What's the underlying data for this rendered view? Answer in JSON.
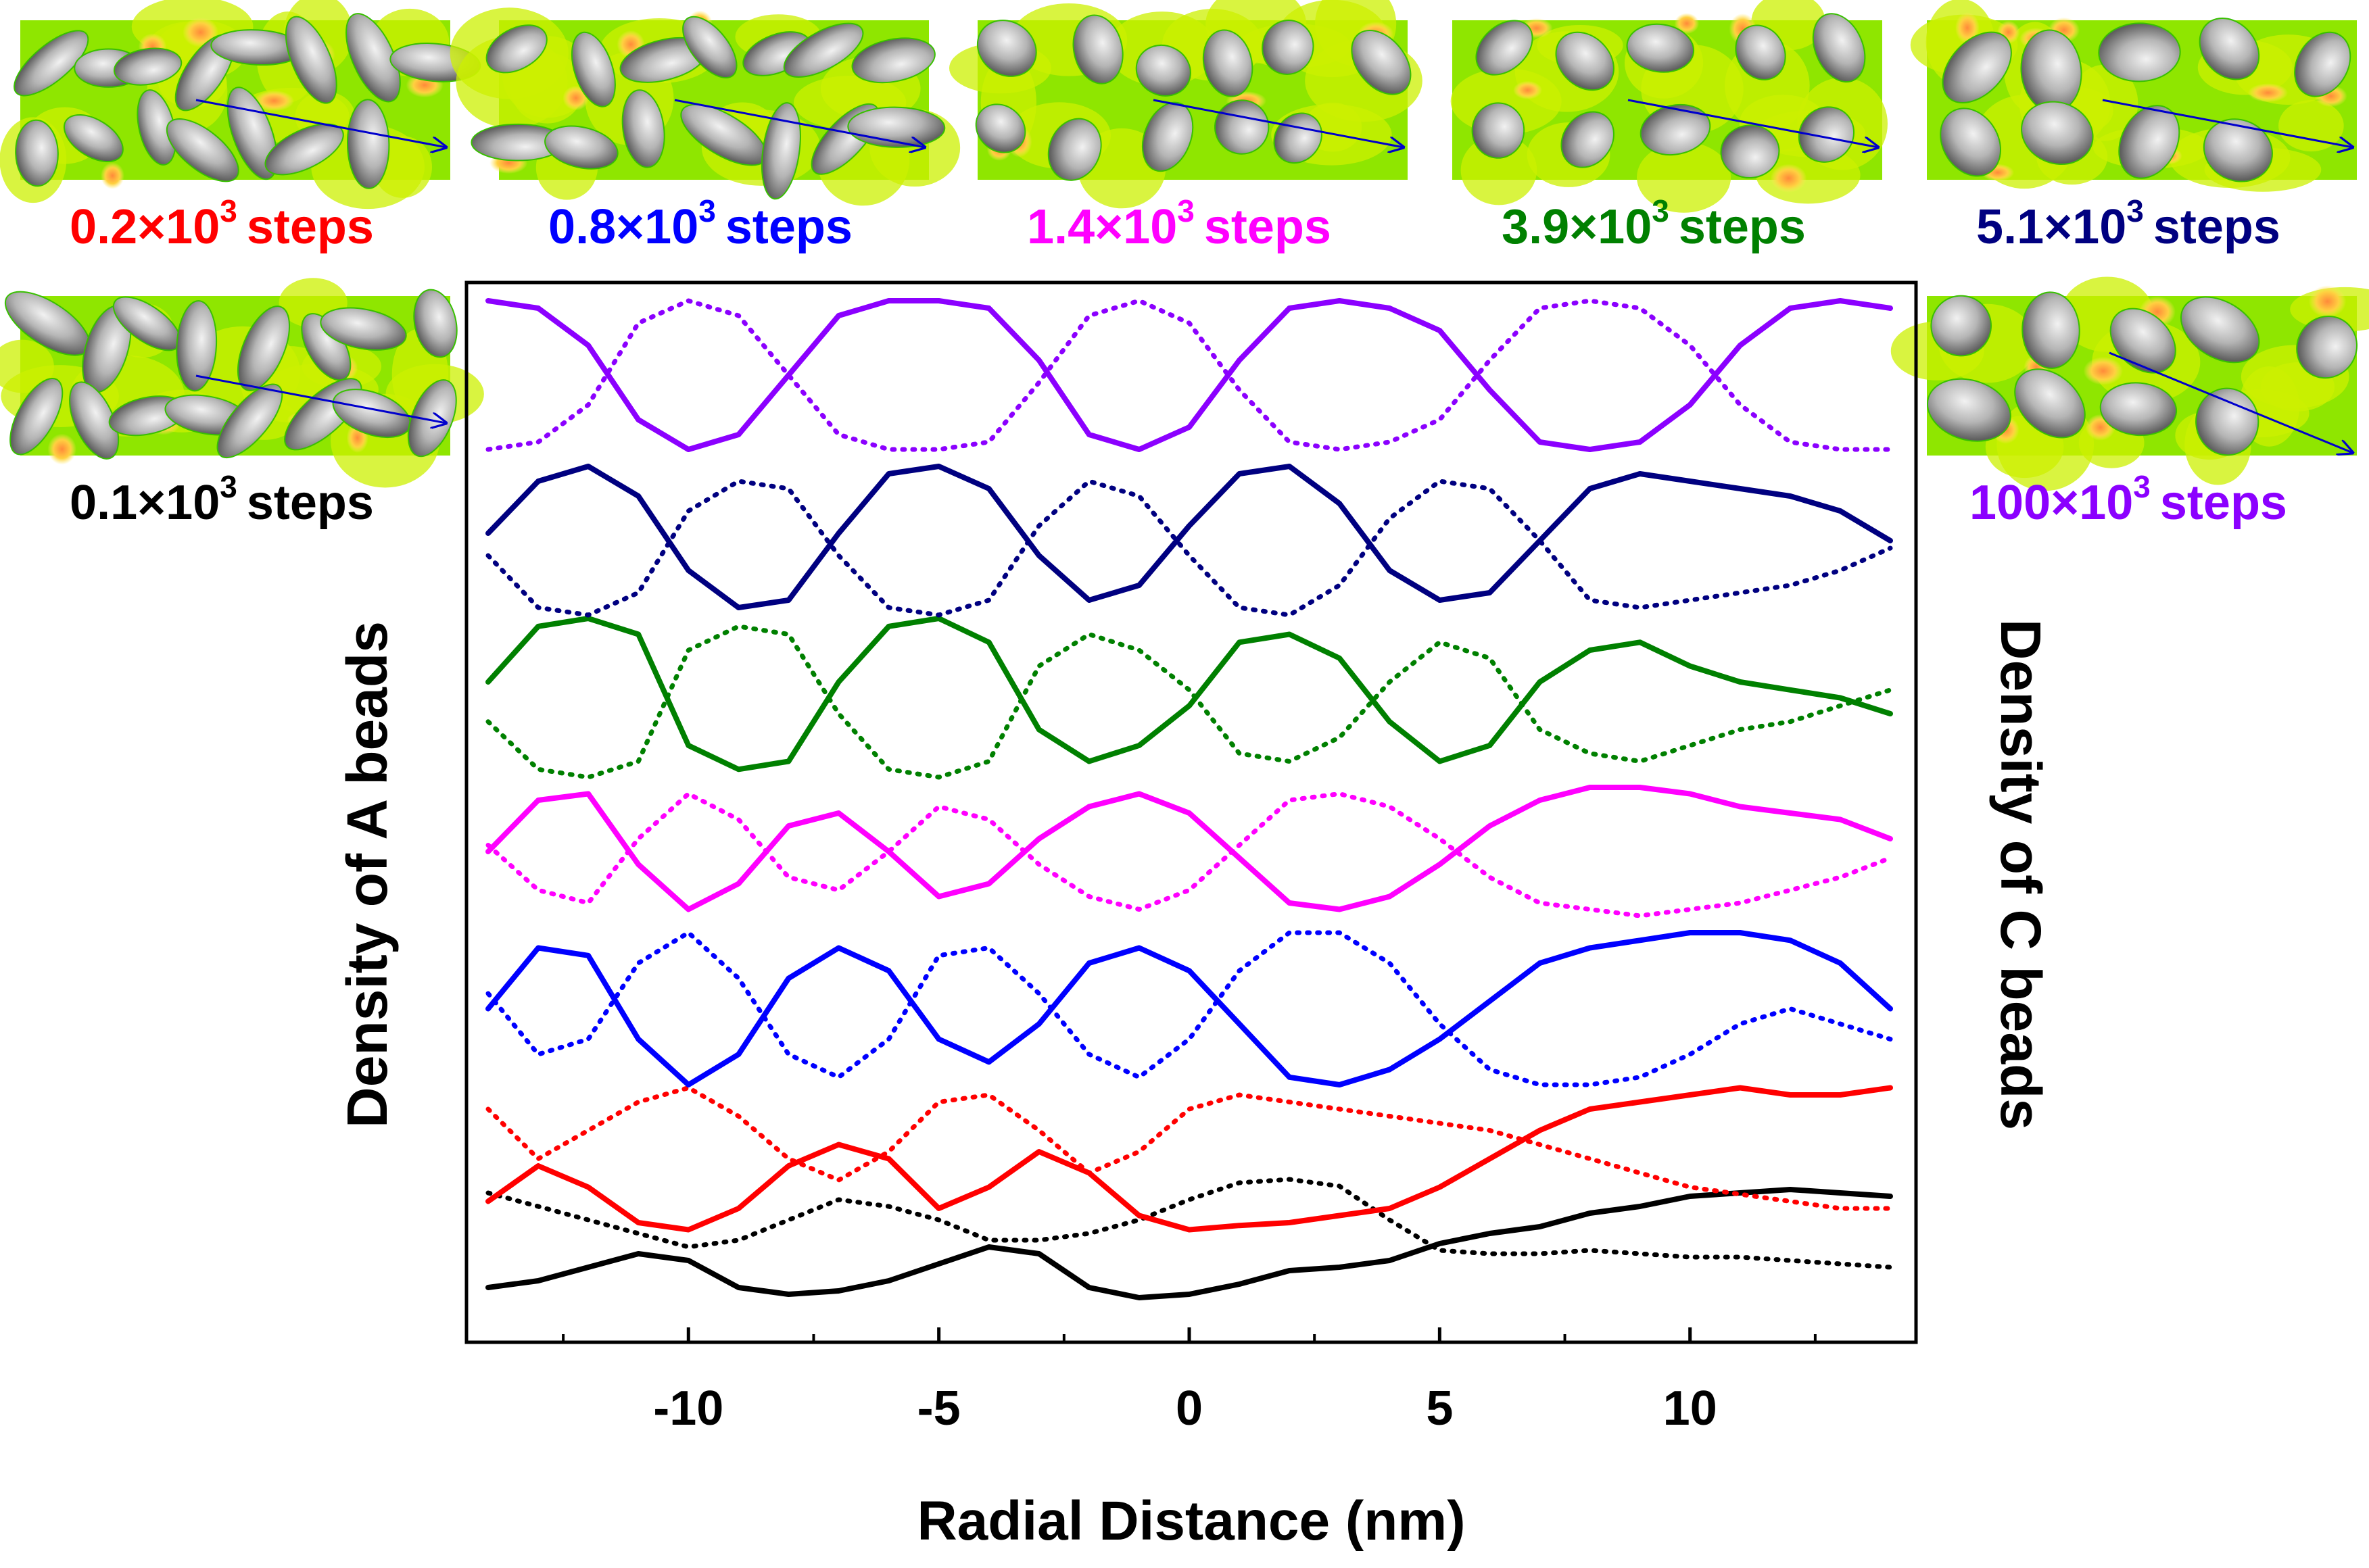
{
  "chart_data": {
    "type": "line",
    "xlabel": "Radial Distance (nm)",
    "ylabel_left": "Density of A beads",
    "ylabel_right": "Density of C beads",
    "xlim": [
      -14,
      14
    ],
    "xticks": [
      -10,
      -5,
      0,
      5,
      10
    ],
    "xtick_labels": [
      "-10",
      "-5",
      "0",
      "5",
      "10"
    ],
    "y_units": "arbitrary (curves vertically offset, no y tick labels)",
    "x": [
      -14,
      -13,
      -12,
      -11,
      -10,
      -9,
      -8,
      -7,
      -6,
      -5,
      -4,
      -3,
      -2,
      -1,
      0,
      1,
      2,
      3,
      4,
      5,
      6,
      7,
      8,
      9,
      10,
      11,
      12,
      13,
      14
    ],
    "series": [
      {
        "name": "0.1×10^3 steps",
        "step_label_mantissa": "0.1",
        "step_label_suffix": "steps",
        "color": "#000000",
        "A": [
          0.3,
          0.4,
          0.6,
          0.8,
          0.7,
          0.3,
          0.2,
          0.25,
          0.4,
          0.65,
          0.9,
          0.8,
          0.3,
          0.15,
          0.2,
          0.35,
          0.55,
          0.6,
          0.7,
          0.95,
          1.1,
          1.2,
          1.4,
          1.5,
          1.65,
          1.7,
          1.75,
          1.7,
          1.65
        ],
        "C": [
          1.7,
          1.5,
          1.3,
          1.1,
          0.9,
          1.0,
          1.3,
          1.6,
          1.5,
          1.3,
          1.0,
          1.0,
          1.1,
          1.3,
          1.6,
          1.85,
          1.9,
          1.8,
          1.3,
          0.85,
          0.8,
          0.8,
          0.85,
          0.8,
          0.75,
          0.75,
          0.7,
          0.65,
          0.6
        ]
      },
      {
        "name": "0.2×10^3 steps",
        "step_label_mantissa": "0.2",
        "step_label_suffix": "steps",
        "color": "#ff0000",
        "A": [
          0.25,
          0.5,
          0.35,
          0.1,
          0.05,
          0.2,
          0.5,
          0.65,
          0.55,
          0.2,
          0.35,
          0.6,
          0.45,
          0.15,
          0.05,
          0.08,
          0.1,
          0.15,
          0.2,
          0.35,
          0.55,
          0.75,
          0.9,
          0.95,
          1.0,
          1.05,
          1.0,
          1.0,
          1.05
        ],
        "C": [
          0.9,
          0.55,
          0.75,
          0.95,
          1.05,
          0.85,
          0.55,
          0.4,
          0.6,
          0.95,
          1.0,
          0.75,
          0.45,
          0.6,
          0.9,
          1.0,
          0.95,
          0.9,
          0.85,
          0.8,
          0.75,
          0.65,
          0.55,
          0.45,
          0.35,
          0.3,
          0.25,
          0.2,
          0.2
        ]
      },
      {
        "name": "0.8×10^3 steps",
        "step_label_mantissa": "0.8",
        "step_label_suffix": "steps",
        "color": "#0000ff",
        "A": [
          0.5,
          0.9,
          0.85,
          0.3,
          0.0,
          0.2,
          0.7,
          0.9,
          0.75,
          0.3,
          0.15,
          0.4,
          0.8,
          0.9,
          0.75,
          0.4,
          0.05,
          0.0,
          0.1,
          0.3,
          0.55,
          0.8,
          0.9,
          0.95,
          1.0,
          1.0,
          0.95,
          0.8,
          0.5
        ],
        "C": [
          0.6,
          0.2,
          0.3,
          0.8,
          1.0,
          0.7,
          0.2,
          0.05,
          0.3,
          0.85,
          0.9,
          0.6,
          0.2,
          0.05,
          0.3,
          0.75,
          1.0,
          1.0,
          0.8,
          0.4,
          0.1,
          0.0,
          0.0,
          0.05,
          0.2,
          0.4,
          0.5,
          0.4,
          0.3
        ]
      },
      {
        "name": "1.4×10^3 steps",
        "step_label_mantissa": "1.4",
        "step_label_suffix": "steps",
        "color": "#ff00ff",
        "A": [
          0.5,
          0.9,
          0.95,
          0.4,
          0.05,
          0.25,
          0.7,
          0.8,
          0.5,
          0.15,
          0.25,
          0.6,
          0.85,
          0.95,
          0.8,
          0.45,
          0.1,
          0.05,
          0.15,
          0.4,
          0.7,
          0.9,
          1.0,
          1.0,
          0.95,
          0.85,
          0.8,
          0.75,
          0.6
        ],
        "C": [
          0.55,
          0.2,
          0.1,
          0.6,
          0.95,
          0.75,
          0.3,
          0.2,
          0.5,
          0.85,
          0.75,
          0.4,
          0.15,
          0.05,
          0.2,
          0.55,
          0.9,
          0.95,
          0.85,
          0.6,
          0.3,
          0.1,
          0.05,
          0.0,
          0.05,
          0.1,
          0.2,
          0.3,
          0.45
        ]
      },
      {
        "name": "3.9×10^3 steps",
        "step_label_mantissa": "3.9",
        "step_label_suffix": "steps",
        "color": "#008000",
        "A": [
          0.6,
          0.95,
          1.0,
          0.9,
          0.2,
          0.05,
          0.1,
          0.6,
          0.95,
          1.0,
          0.85,
          0.3,
          0.1,
          0.2,
          0.45,
          0.85,
          0.9,
          0.75,
          0.35,
          0.1,
          0.2,
          0.6,
          0.8,
          0.85,
          0.7,
          0.6,
          0.55,
          0.5,
          0.4
        ],
        "C": [
          0.35,
          0.05,
          0.0,
          0.1,
          0.8,
          0.95,
          0.9,
          0.4,
          0.05,
          0.0,
          0.1,
          0.7,
          0.9,
          0.8,
          0.55,
          0.15,
          0.1,
          0.25,
          0.6,
          0.85,
          0.75,
          0.3,
          0.15,
          0.1,
          0.2,
          0.3,
          0.35,
          0.45,
          0.55
        ]
      },
      {
        "name": "5.1×10^3 steps",
        "step_label_mantissa": "5.1",
        "step_label_suffix": "steps",
        "color": "#000080",
        "A": [
          0.55,
          0.9,
          1.0,
          0.8,
          0.3,
          0.05,
          0.1,
          0.55,
          0.95,
          1.0,
          0.85,
          0.4,
          0.1,
          0.2,
          0.6,
          0.95,
          1.0,
          0.75,
          0.3,
          0.1,
          0.15,
          0.5,
          0.85,
          0.95,
          0.9,
          0.85,
          0.8,
          0.7,
          0.5
        ],
        "C": [
          0.4,
          0.05,
          0.0,
          0.15,
          0.7,
          0.9,
          0.85,
          0.4,
          0.05,
          0.0,
          0.1,
          0.6,
          0.9,
          0.8,
          0.4,
          0.05,
          0.0,
          0.2,
          0.65,
          0.9,
          0.85,
          0.5,
          0.1,
          0.05,
          0.1,
          0.15,
          0.2,
          0.3,
          0.45
        ]
      },
      {
        "name": "100×10^3 steps",
        "step_label_mantissa": "100",
        "step_label_suffix": "steps",
        "color": "#8b00ff",
        "A": [
          1.0,
          0.95,
          0.7,
          0.2,
          0.0,
          0.1,
          0.5,
          0.9,
          1.0,
          1.0,
          0.95,
          0.6,
          0.1,
          0.0,
          0.15,
          0.6,
          0.95,
          1.0,
          0.95,
          0.8,
          0.4,
          0.05,
          0.0,
          0.05,
          0.3,
          0.7,
          0.95,
          1.0,
          0.95
        ],
        "C": [
          0.0,
          0.05,
          0.3,
          0.85,
          1.0,
          0.9,
          0.5,
          0.1,
          0.0,
          0.0,
          0.05,
          0.45,
          0.9,
          1.0,
          0.85,
          0.4,
          0.05,
          0.0,
          0.05,
          0.2,
          0.6,
          0.95,
          1.0,
          0.95,
          0.7,
          0.3,
          0.05,
          0.0,
          0.0
        ]
      }
    ]
  },
  "panels": [
    {
      "id": "p02",
      "mantissa": "0.2",
      "suffix": "steps",
      "color": "#ff0000"
    },
    {
      "id": "p08",
      "mantissa": "0.8",
      "suffix": "steps",
      "color": "#0000ff"
    },
    {
      "id": "p14",
      "mantissa": "1.4",
      "suffix": "steps",
      "color": "#ff00ff"
    },
    {
      "id": "p39",
      "mantissa": "3.9",
      "suffix": "steps",
      "color": "#008000"
    },
    {
      "id": "p51",
      "mantissa": "5.1",
      "suffix": "steps",
      "color": "#000080"
    },
    {
      "id": "p01",
      "mantissa": "0.1",
      "suffix": "steps",
      "color": "#000000"
    },
    {
      "id": "p100",
      "mantissa": "100",
      "suffix": "steps",
      "color": "#8b00ff"
    }
  ],
  "panel_label_base": "×10",
  "panel_label_exponent": "3",
  "panel_colors": {
    "matrix": "#8fe600",
    "interface": "#ccf000",
    "domain_fill": "#8a8a8a",
    "hotspot": "#ff9a3c",
    "arrow": "#0000cc"
  }
}
